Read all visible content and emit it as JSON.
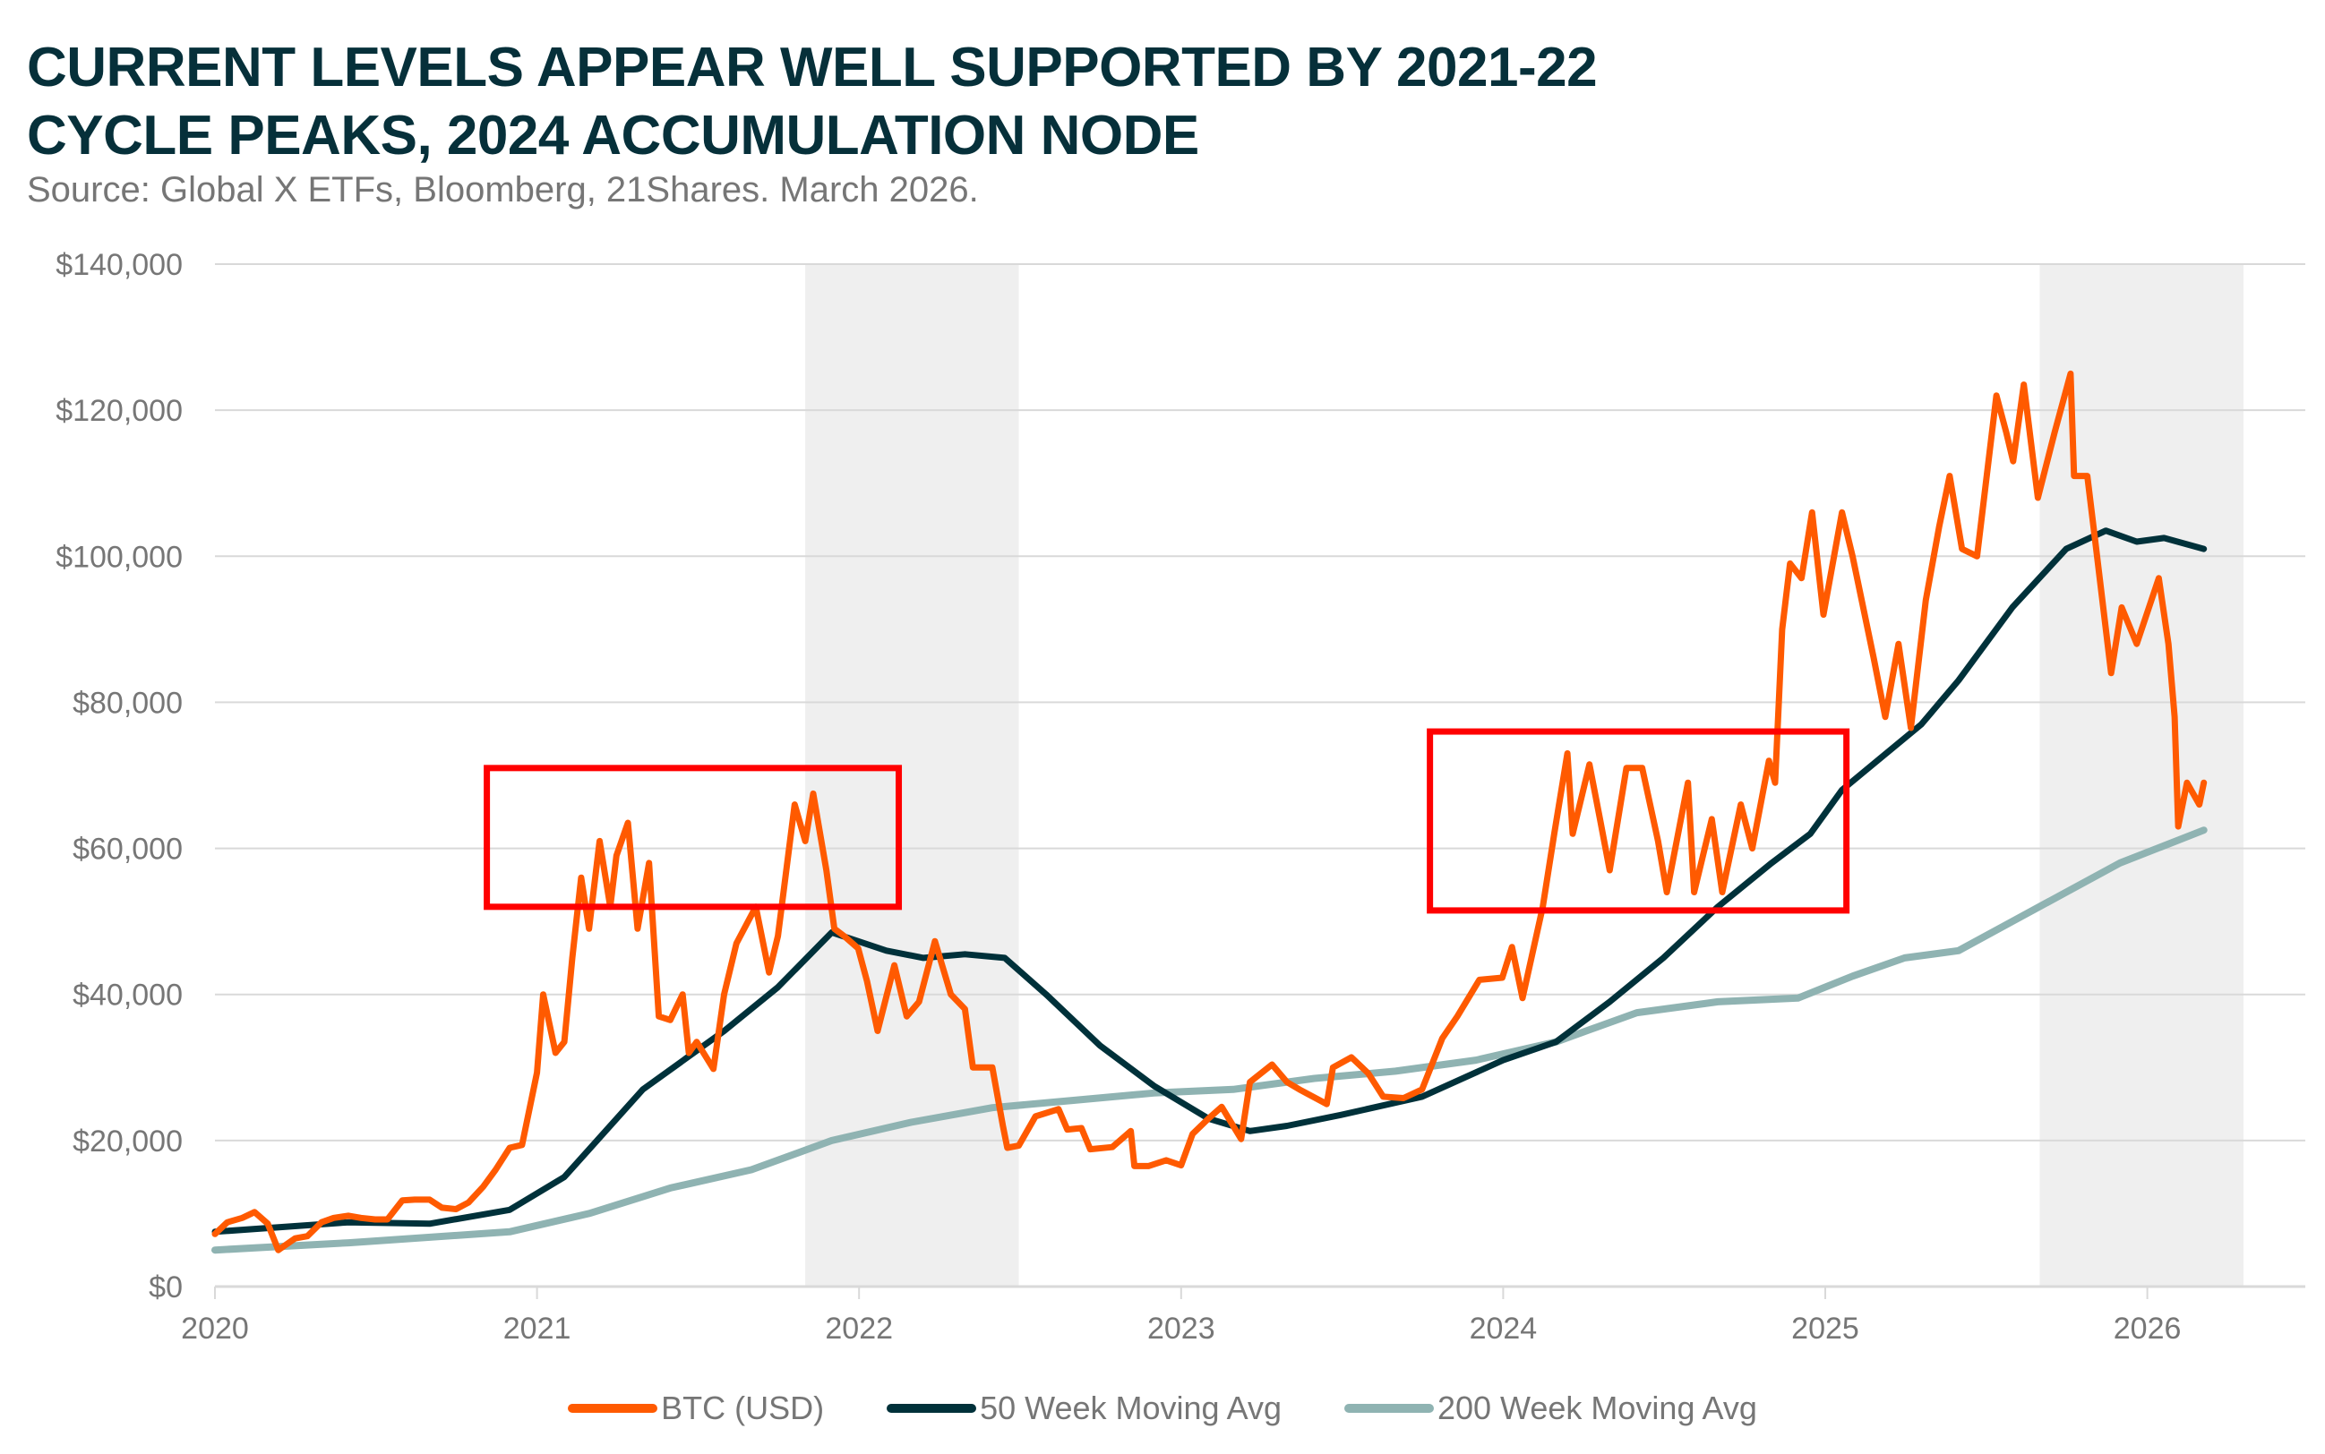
{
  "title_line1": "CURRENT LEVELS APPEAR WELL SUPPORTED BY 2021-22",
  "title_line2": "CYCLE PEAKS, 2024 ACCUMULATION NODE",
  "subtitle": "Source: Global X ETFs, Bloomberg, 21Shares. March 2026.",
  "chart_data": {
    "type": "line",
    "title": "CURRENT LEVELS APPEAR WELL SUPPORTED BY 2021-22 CYCLE PEAKS, 2024 ACCUMULATION NODE",
    "xlabel": "",
    "ylabel": "",
    "xlim": [
      "2020-01-01",
      "2026-07-15"
    ],
    "ylim": [
      0,
      140000
    ],
    "x_ticks": [
      "2020",
      "2021",
      "2022",
      "2023",
      "2024",
      "2025",
      "2026"
    ],
    "y_ticks": [
      "$0",
      "$20,000",
      "$40,000",
      "$60,000",
      "$80,000",
      "$100,000",
      "$120,000",
      "$140,000"
    ],
    "y_tick_values": [
      0,
      20000,
      40000,
      60000,
      80000,
      100000,
      120000,
      140000
    ],
    "grid": "horizontal",
    "legend_position": "bottom",
    "shaded_periods": [
      [
        "2021-11-01",
        "2022-07-01"
      ],
      [
        "2025-09-01",
        "2026-04-20"
      ]
    ],
    "highlight_boxes": [
      {
        "x": [
          "2020-11-05",
          "2022-02-15"
        ],
        "y": [
          52000,
          71000
        ]
      },
      {
        "x": [
          "2023-10-10",
          "2025-01-25"
        ],
        "y": [
          51500,
          76000
        ]
      }
    ],
    "colors": {
      "btc": "#FF5A00",
      "ma50": "#00313A",
      "ma200": "#8FB3B2",
      "box": "#FF0000",
      "shade": "#EFEFEF",
      "grid": "#D9D9D9"
    },
    "series": [
      {
        "name": "BTC (USD)",
        "points": [
          [
            "2020-01-01",
            7200
          ],
          [
            "2020-01-15",
            8800
          ],
          [
            "2020-02-01",
            9400
          ],
          [
            "2020-02-15",
            10200
          ],
          [
            "2020-03-01",
            8600
          ],
          [
            "2020-03-13",
            5000
          ],
          [
            "2020-04-01",
            6600
          ],
          [
            "2020-04-15",
            6900
          ],
          [
            "2020-05-01",
            8800
          ],
          [
            "2020-05-15",
            9400
          ],
          [
            "2020-06-01",
            9700
          ],
          [
            "2020-06-15",
            9400
          ],
          [
            "2020-07-01",
            9200
          ],
          [
            "2020-07-15",
            9200
          ],
          [
            "2020-08-01",
            11800
          ],
          [
            "2020-08-15",
            11900
          ],
          [
            "2020-09-01",
            11900
          ],
          [
            "2020-09-15",
            10800
          ],
          [
            "2020-10-01",
            10600
          ],
          [
            "2020-10-15",
            11500
          ],
          [
            "2020-11-01",
            13700
          ],
          [
            "2020-11-15",
            16000
          ],
          [
            "2020-12-01",
            19000
          ],
          [
            "2020-12-15",
            19400
          ],
          [
            "2021-01-01",
            29300
          ],
          [
            "2021-01-08",
            40000
          ],
          [
            "2021-01-15",
            36000
          ],
          [
            "2021-01-22",
            32000
          ],
          [
            "2021-02-01",
            33500
          ],
          [
            "2021-02-10",
            45000
          ],
          [
            "2021-02-20",
            56000
          ],
          [
            "2021-03-01",
            49000
          ],
          [
            "2021-03-13",
            61000
          ],
          [
            "2021-03-25",
            52000
          ],
          [
            "2021-04-01",
            59000
          ],
          [
            "2021-04-14",
            63500
          ],
          [
            "2021-04-25",
            49000
          ],
          [
            "2021-05-08",
            58000
          ],
          [
            "2021-05-19",
            37000
          ],
          [
            "2021-06-01",
            36500
          ],
          [
            "2021-06-15",
            40000
          ],
          [
            "2021-06-22",
            32000
          ],
          [
            "2021-07-01",
            33500
          ],
          [
            "2021-07-20",
            29800
          ],
          [
            "2021-08-01",
            40000
          ],
          [
            "2021-08-15",
            47000
          ],
          [
            "2021-09-06",
            52000
          ],
          [
            "2021-09-21",
            43000
          ],
          [
            "2021-10-01",
            48000
          ],
          [
            "2021-10-20",
            66000
          ],
          [
            "2021-11-01",
            61000
          ],
          [
            "2021-11-10",
            67500
          ],
          [
            "2021-11-25",
            57000
          ],
          [
            "2021-12-04",
            49000
          ],
          [
            "2021-12-15",
            48000
          ],
          [
            "2021-12-31",
            46300
          ],
          [
            "2022-01-10",
            41800
          ],
          [
            "2022-01-22",
            35000
          ],
          [
            "2022-02-10",
            44000
          ],
          [
            "2022-02-24",
            37000
          ],
          [
            "2022-03-10",
            39000
          ],
          [
            "2022-03-28",
            47300
          ],
          [
            "2022-04-15",
            40000
          ],
          [
            "2022-05-01",
            38000
          ],
          [
            "2022-05-10",
            30000
          ],
          [
            "2022-06-01",
            30000
          ],
          [
            "2022-06-13",
            22000
          ],
          [
            "2022-06-18",
            19000
          ],
          [
            "2022-07-01",
            19300
          ],
          [
            "2022-07-20",
            23300
          ],
          [
            "2022-08-15",
            24300
          ],
          [
            "2022-08-25",
            21500
          ],
          [
            "2022-09-10",
            21700
          ],
          [
            "2022-09-20",
            18800
          ],
          [
            "2022-10-15",
            19100
          ],
          [
            "2022-11-05",
            21300
          ],
          [
            "2022-11-09",
            16500
          ],
          [
            "2022-11-25",
            16500
          ],
          [
            "2022-12-15",
            17300
          ],
          [
            "2023-01-01",
            16600
          ],
          [
            "2023-01-14",
            20900
          ],
          [
            "2023-02-01",
            23000
          ],
          [
            "2023-02-16",
            24600
          ],
          [
            "2023-03-10",
            20200
          ],
          [
            "2023-03-20",
            28000
          ],
          [
            "2023-04-14",
            30400
          ],
          [
            "2023-05-01",
            28000
          ],
          [
            "2023-05-15",
            27000
          ],
          [
            "2023-06-15",
            25000
          ],
          [
            "2023-06-22",
            30000
          ],
          [
            "2023-07-13",
            31400
          ],
          [
            "2023-08-01",
            29200
          ],
          [
            "2023-08-18",
            26000
          ],
          [
            "2023-09-10",
            25800
          ],
          [
            "2023-10-01",
            27000
          ],
          [
            "2023-10-24",
            34000
          ],
          [
            "2023-11-10",
            37000
          ],
          [
            "2023-12-05",
            42000
          ],
          [
            "2023-12-31",
            42300
          ],
          [
            "2024-01-11",
            46500
          ],
          [
            "2024-01-23",
            39500
          ],
          [
            "2024-02-15",
            52000
          ],
          [
            "2024-02-28",
            62000
          ],
          [
            "2024-03-14",
            73000
          ],
          [
            "2024-03-20",
            62000
          ],
          [
            "2024-04-08",
            71500
          ],
          [
            "2024-04-20",
            64000
          ],
          [
            "2024-05-01",
            57000
          ],
          [
            "2024-05-20",
            71000
          ],
          [
            "2024-06-07",
            71000
          ],
          [
            "2024-06-25",
            61000
          ],
          [
            "2024-07-05",
            54000
          ],
          [
            "2024-07-29",
            69000
          ],
          [
            "2024-08-05",
            54000
          ],
          [
            "2024-08-25",
            64000
          ],
          [
            "2024-09-06",
            54000
          ],
          [
            "2024-09-27",
            66000
          ],
          [
            "2024-10-10",
            60000
          ],
          [
            "2024-10-29",
            72000
          ],
          [
            "2024-11-05",
            69000
          ],
          [
            "2024-11-13",
            90000
          ],
          [
            "2024-11-22",
            99000
          ],
          [
            "2024-12-05",
            97000
          ],
          [
            "2024-12-17",
            106000
          ],
          [
            "2024-12-30",
            92000
          ],
          [
            "2025-01-20",
            106000
          ],
          [
            "2025-02-01",
            100000
          ],
          [
            "2025-02-25",
            86000
          ],
          [
            "2025-03-10",
            78000
          ],
          [
            "2025-03-25",
            88000
          ],
          [
            "2025-04-08",
            76500
          ],
          [
            "2025-04-25",
            94000
          ],
          [
            "2025-05-10",
            104000
          ],
          [
            "2025-05-22",
            111000
          ],
          [
            "2025-06-05",
            101000
          ],
          [
            "2025-06-22",
            100000
          ],
          [
            "2025-07-14",
            122000
          ],
          [
            "2025-07-25",
            117000
          ],
          [
            "2025-08-02",
            113000
          ],
          [
            "2025-08-14",
            123500
          ],
          [
            "2025-08-30",
            108000
          ],
          [
            "2025-09-18",
            117000
          ],
          [
            "2025-10-06",
            125000
          ],
          [
            "2025-10-10",
            111000
          ],
          [
            "2025-10-25",
            111000
          ],
          [
            "2025-11-04",
            101000
          ],
          [
            "2025-11-21",
            84000
          ],
          [
            "2025-12-03",
            93000
          ],
          [
            "2025-12-20",
            88000
          ],
          [
            "2026-01-14",
            97000
          ],
          [
            "2026-01-25",
            88000
          ],
          [
            "2026-02-01",
            78000
          ],
          [
            "2026-02-05",
            63000
          ],
          [
            "2026-02-15",
            69000
          ],
          [
            "2026-03-01",
            66000
          ],
          [
            "2026-03-06",
            69000
          ]
        ]
      },
      {
        "name": "50 Week Moving Avg",
        "points": [
          [
            "2020-01-01",
            7500
          ],
          [
            "2020-06-01",
            8800
          ],
          [
            "2020-09-01",
            8600
          ],
          [
            "2020-12-01",
            10500
          ],
          [
            "2021-02-01",
            15000
          ],
          [
            "2021-05-01",
            27000
          ],
          [
            "2021-08-01",
            35000
          ],
          [
            "2021-10-01",
            41000
          ],
          [
            "2021-12-01",
            48500
          ],
          [
            "2022-02-01",
            46000
          ],
          [
            "2022-03-15",
            45000
          ],
          [
            "2022-05-01",
            45500
          ],
          [
            "2022-06-15",
            45000
          ],
          [
            "2022-08-01",
            40000
          ],
          [
            "2022-10-01",
            33000
          ],
          [
            "2022-12-01",
            27500
          ],
          [
            "2023-02-01",
            23000
          ],
          [
            "2023-03-20",
            21300
          ],
          [
            "2023-05-01",
            22000
          ],
          [
            "2023-07-01",
            23500
          ],
          [
            "2023-10-01",
            26000
          ],
          [
            "2024-01-01",
            31000
          ],
          [
            "2024-03-01",
            33500
          ],
          [
            "2024-05-01",
            39000
          ],
          [
            "2024-07-01",
            45000
          ],
          [
            "2024-09-01",
            52000
          ],
          [
            "2024-11-01",
            58000
          ],
          [
            "2024-12-15",
            62000
          ],
          [
            "2025-01-20",
            68000
          ],
          [
            "2025-03-01",
            72000
          ],
          [
            "2025-04-20",
            77000
          ],
          [
            "2025-06-01",
            83000
          ],
          [
            "2025-08-01",
            93000
          ],
          [
            "2025-10-01",
            101000
          ],
          [
            "2025-11-15",
            103500
          ],
          [
            "2025-12-20",
            102000
          ],
          [
            "2026-01-20",
            102500
          ],
          [
            "2026-03-06",
            101000
          ]
        ]
      },
      {
        "name": "200 Week Moving Avg",
        "points": [
          [
            "2020-01-01",
            5000
          ],
          [
            "2020-06-01",
            6000
          ],
          [
            "2020-12-01",
            7500
          ],
          [
            "2021-03-01",
            10000
          ],
          [
            "2021-06-01",
            13500
          ],
          [
            "2021-09-01",
            16000
          ],
          [
            "2021-12-01",
            20000
          ],
          [
            "2022-03-01",
            22500
          ],
          [
            "2022-06-01",
            24500
          ],
          [
            "2022-09-01",
            25500
          ],
          [
            "2022-12-01",
            26500
          ],
          [
            "2023-03-01",
            27000
          ],
          [
            "2023-06-01",
            28500
          ],
          [
            "2023-09-01",
            29500
          ],
          [
            "2023-12-01",
            31000
          ],
          [
            "2024-03-01",
            33500
          ],
          [
            "2024-06-01",
            37500
          ],
          [
            "2024-09-01",
            39000
          ],
          [
            "2024-12-01",
            39500
          ],
          [
            "2025-02-01",
            42500
          ],
          [
            "2025-04-01",
            45000
          ],
          [
            "2025-06-01",
            46000
          ],
          [
            "2025-08-01",
            50000
          ],
          [
            "2025-10-01",
            54000
          ],
          [
            "2025-12-01",
            58000
          ],
          [
            "2026-03-06",
            62500
          ]
        ]
      }
    ]
  }
}
